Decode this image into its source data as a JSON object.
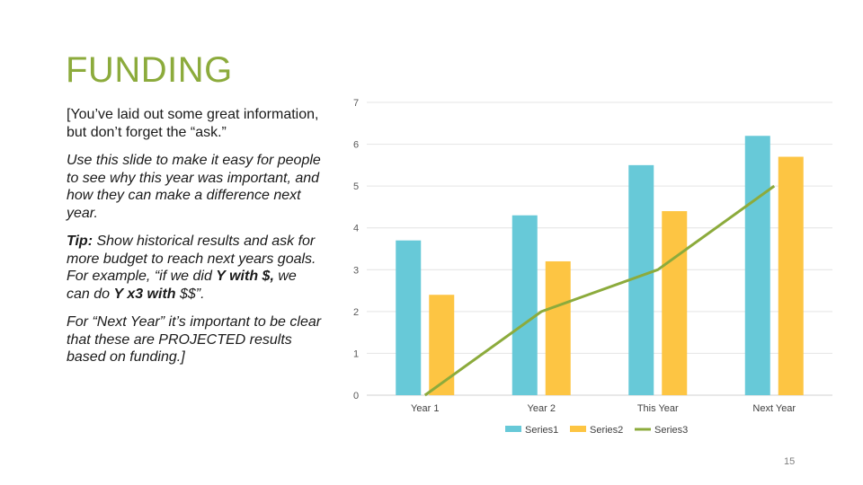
{
  "slide": {
    "title": "FUNDING",
    "page_number": "15",
    "accent_color": "#8cab3c"
  },
  "text": {
    "p1": "[You’ve laid out some great information, but don’t forget the “ask.”",
    "p2": "Use this slide to make it easy for people to see why this year was important, and how they can make a difference next year.",
    "p3_prefix": "Tip:",
    "p3_a": " Show historical results and ask for more budget to reach next years goals. For example, “if we did ",
    "p3_b1": "Y with $,",
    "p3_c": " we can do ",
    "p3_b2": "Y x3 with",
    "p3_d": " $$”.",
    "p4": "For “Next Year” it’s important to be clear that these are PROJECTED results based on funding.]"
  },
  "chart_data": {
    "type": "bar",
    "title": "",
    "xlabel": "",
    "ylabel": "",
    "categories": [
      "Year 1",
      "Year 2",
      "This Year",
      "Next Year"
    ],
    "ylim": [
      0,
      7
    ],
    "yticks": [
      "0",
      "1",
      "2",
      "3",
      "4",
      "5",
      "6",
      "7"
    ],
    "grid": true,
    "legend_position": "bottom",
    "series": [
      {
        "name": "Series1",
        "kind": "bar",
        "color": "#67c9d8",
        "values": [
          3.7,
          4.3,
          5.5,
          6.2
        ]
      },
      {
        "name": "Series2",
        "kind": "bar",
        "color": "#fdc543",
        "values": [
          2.4,
          3.2,
          4.4,
          5.7
        ]
      },
      {
        "name": "Series3",
        "kind": "line",
        "color": "#8cab3c",
        "values": [
          0,
          2,
          3,
          5
        ]
      }
    ]
  }
}
